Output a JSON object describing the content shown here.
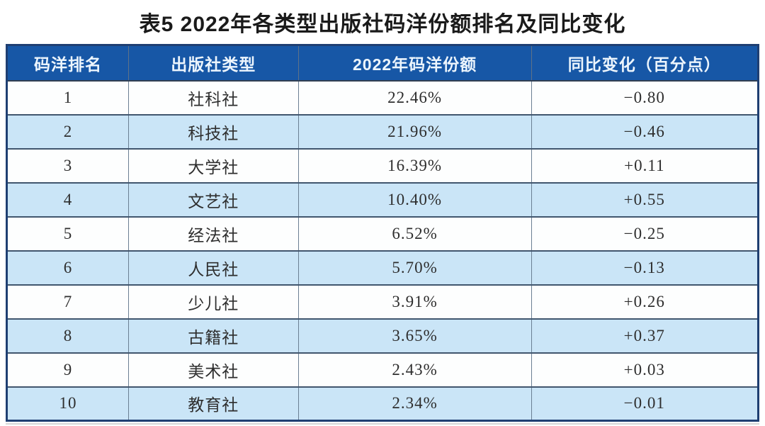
{
  "title": "表5 2022年各类型出版社码洋份额排名及同比变化",
  "colors": {
    "header_bg": "#1757a6",
    "header_text": "#ecf5fd",
    "row_bg": "#fdfefe",
    "row_alt_bg": "#cae5f7",
    "outer_border": "#1f3f72",
    "row_border": "#41566e",
    "body_text": "#2e2e2e"
  },
  "table": {
    "headers": [
      "码洋排名",
      "出版社类型",
      "2022年码洋份额",
      "同比变化（百分点）"
    ],
    "rows": [
      {
        "rank": "1",
        "type": "社科社",
        "share": "22.46%",
        "change": "−0.80"
      },
      {
        "rank": "2",
        "type": "科技社",
        "share": "21.96%",
        "change": "−0.46"
      },
      {
        "rank": "3",
        "type": "大学社",
        "share": "16.39%",
        "change": "+0.11"
      },
      {
        "rank": "4",
        "type": "文艺社",
        "share": "10.40%",
        "change": "+0.55"
      },
      {
        "rank": "5",
        "type": "经法社",
        "share": "6.52%",
        "change": "−0.25"
      },
      {
        "rank": "6",
        "type": "人民社",
        "share": "5.70%",
        "change": "−0.13"
      },
      {
        "rank": "7",
        "type": "少儿社",
        "share": "3.91%",
        "change": "+0.26"
      },
      {
        "rank": "8",
        "type": "古籍社",
        "share": "3.65%",
        "change": "+0.37"
      },
      {
        "rank": "9",
        "type": "美术社",
        "share": "2.43%",
        "change": "+0.03"
      },
      {
        "rank": "10",
        "type": "教育社",
        "share": "2.34%",
        "change": "−0.01"
      }
    ]
  },
  "chart_data": {
    "type": "table",
    "title": "表5 2022年各类型出版社码洋份额排名及同比变化",
    "columns": [
      "码洋排名",
      "出版社类型",
      "2022年码洋份额",
      "同比变化（百分点）"
    ],
    "rows": [
      [
        1,
        "社科社",
        22.46,
        -0.8
      ],
      [
        2,
        "科技社",
        21.96,
        -0.46
      ],
      [
        3,
        "大学社",
        16.39,
        0.11
      ],
      [
        4,
        "文艺社",
        10.4,
        0.55
      ],
      [
        5,
        "经法社",
        6.52,
        -0.25
      ],
      [
        6,
        "人民社",
        5.7,
        -0.13
      ],
      [
        7,
        "少儿社",
        3.91,
        0.26
      ],
      [
        8,
        "古籍社",
        3.65,
        0.37
      ],
      [
        9,
        "美术社",
        2.43,
        0.03
      ],
      [
        10,
        "教育社",
        2.34,
        -0.01
      ]
    ]
  }
}
